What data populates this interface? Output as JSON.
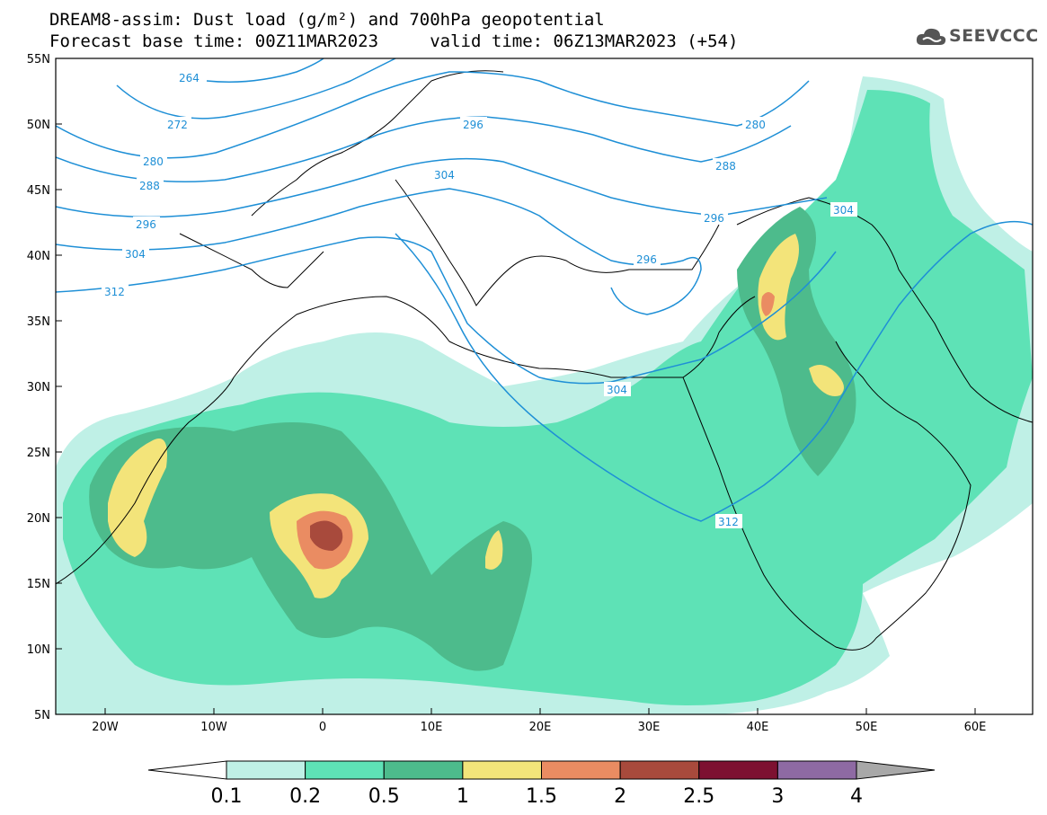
{
  "title": {
    "line1": "DREAM8-assim: Dust load (g/m²) and 700hPa geopotential",
    "line2": "Forecast base time: 00Z11MAR2023     valid time: 06Z13MAR2023 (+54)"
  },
  "logo": {
    "text": "SEEVCCC",
    "icon": "cloud-icon"
  },
  "map": {
    "lon_range": [
      -25,
      65
    ],
    "lat_range": [
      5,
      55
    ],
    "lon_ticks": [
      "20W",
      "10W",
      "0",
      "10E",
      "20E",
      "30E",
      "40E",
      "50E",
      "60E"
    ],
    "lat_ticks": [
      "5N",
      "10N",
      "15N",
      "20N",
      "25N",
      "30N",
      "35N",
      "40N",
      "45N",
      "50N",
      "55N"
    ],
    "contour_color": "#1e8fd6",
    "contour_labels": [
      "264",
      "272",
      "280",
      "288",
      "296",
      "304",
      "312",
      "296",
      "304",
      "280",
      "288",
      "296",
      "304",
      "296",
      "304",
      "312"
    ]
  },
  "colorbar": {
    "ticks": [
      "0.1",
      "0.2",
      "0.5",
      "1",
      "1.5",
      "2",
      "2.5",
      "3",
      "4"
    ],
    "colors": [
      "#bff0e6",
      "#5ee2b6",
      "#4dbb8c",
      "#f3e47a",
      "#ea8c62",
      "#a84a3c",
      "#7d1131",
      "#8e6aa3",
      "#a8a8a8"
    ]
  }
}
